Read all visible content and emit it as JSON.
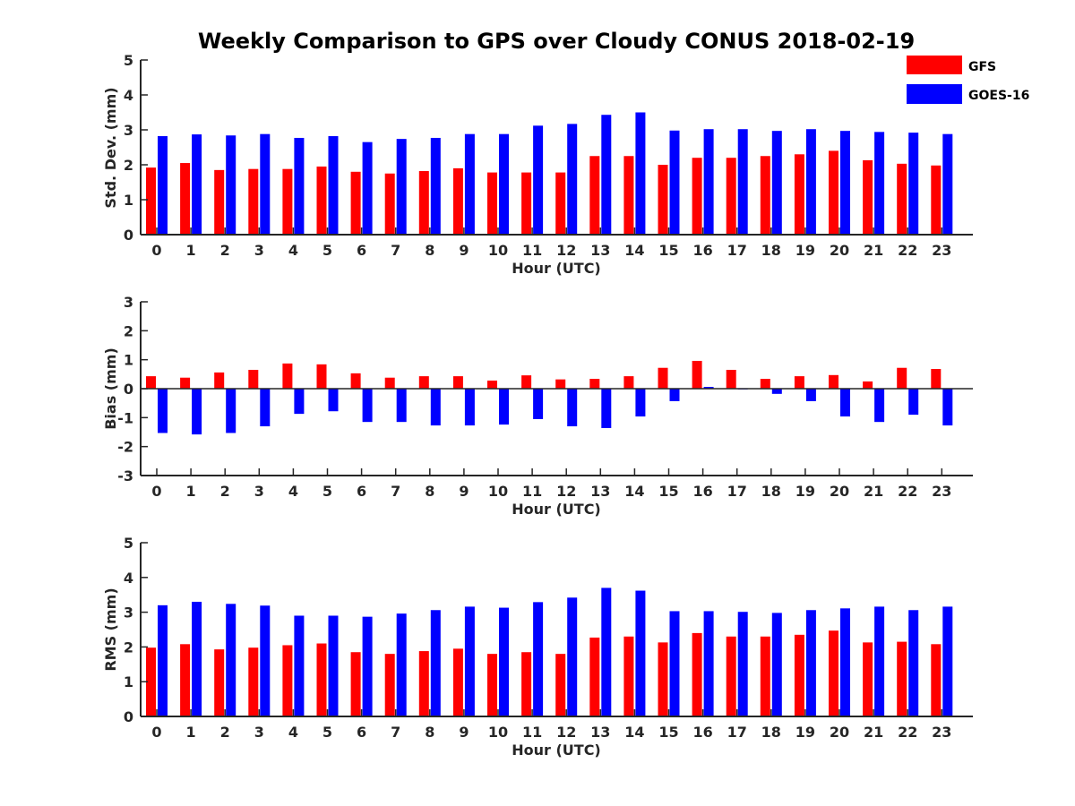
{
  "title": "Weekly Comparison to GPS over Cloudy CONUS 2018-02-19",
  "colors": {
    "GFS": "#ff0000",
    "GOES-16": "#0000ff",
    "axis": "#262626"
  },
  "legend": {
    "placement": "top-right",
    "entries": [
      "GFS",
      "GOES-16"
    ]
  },
  "chart_data": [
    {
      "type": "bar",
      "xlabel": "Hour (UTC)",
      "ylabel": "Std. Dev. (mm)",
      "ylim": [
        0,
        5
      ],
      "yticks": [
        0,
        1,
        2,
        3,
        4,
        5
      ],
      "grid": false,
      "categories": [
        "0",
        "1",
        "2",
        "3",
        "4",
        "5",
        "6",
        "7",
        "8",
        "9",
        "10",
        "11",
        "12",
        "13",
        "14",
        "15",
        "16",
        "17",
        "18",
        "19",
        "20",
        "21",
        "22",
        "23"
      ],
      "series": [
        {
          "name": "GFS",
          "values": [
            1.92,
            2.05,
            1.85,
            1.88,
            1.88,
            1.95,
            1.8,
            1.75,
            1.82,
            1.9,
            1.78,
            1.78,
            1.78,
            2.25,
            2.25,
            2.0,
            2.2,
            2.2,
            2.25,
            2.3,
            2.4,
            2.13,
            2.03,
            1.98
          ]
        },
        {
          "name": "GOES-16",
          "values": [
            2.82,
            2.87,
            2.84,
            2.88,
            2.77,
            2.82,
            2.65,
            2.74,
            2.77,
            2.88,
            2.88,
            3.12,
            3.17,
            3.43,
            3.5,
            2.98,
            3.02,
            3.02,
            2.97,
            3.02,
            2.97,
            2.94,
            2.92,
            2.88
          ]
        }
      ]
    },
    {
      "type": "bar",
      "xlabel": "Hour (UTC)",
      "ylabel": "Bias (mm)",
      "ylim": [
        -3,
        3
      ],
      "yticks": [
        -3,
        -2,
        -1,
        0,
        1,
        2,
        3
      ],
      "grid": false,
      "categories": [
        "0",
        "1",
        "2",
        "3",
        "4",
        "5",
        "6",
        "7",
        "8",
        "9",
        "10",
        "11",
        "12",
        "13",
        "14",
        "15",
        "16",
        "17",
        "18",
        "19",
        "20",
        "21",
        "22",
        "23"
      ],
      "series": [
        {
          "name": "GFS",
          "values": [
            0.43,
            0.38,
            0.56,
            0.65,
            0.87,
            0.84,
            0.53,
            0.38,
            0.43,
            0.43,
            0.28,
            0.46,
            0.32,
            0.34,
            0.43,
            0.72,
            0.96,
            0.65,
            0.34,
            0.43,
            0.47,
            0.25,
            0.72,
            0.68
          ]
        },
        {
          "name": "GOES-16",
          "values": [
            -1.53,
            -1.58,
            -1.53,
            -1.3,
            -0.87,
            -0.78,
            -1.15,
            -1.15,
            -1.27,
            -1.27,
            -1.24,
            -1.05,
            -1.3,
            -1.36,
            -0.96,
            -0.43,
            0.06,
            0.0,
            -0.18,
            -0.43,
            -0.96,
            -1.15,
            -0.9,
            -1.27
          ]
        }
      ]
    },
    {
      "type": "bar",
      "xlabel": "Hour (UTC)",
      "ylabel": "RMS (mm)",
      "ylim": [
        0,
        5
      ],
      "yticks": [
        0,
        1,
        2,
        3,
        4,
        5
      ],
      "grid": false,
      "categories": [
        "0",
        "1",
        "2",
        "3",
        "4",
        "5",
        "6",
        "7",
        "8",
        "9",
        "10",
        "11",
        "12",
        "13",
        "14",
        "15",
        "16",
        "17",
        "18",
        "19",
        "20",
        "21",
        "22",
        "23"
      ],
      "series": [
        {
          "name": "GFS",
          "values": [
            1.98,
            2.08,
            1.93,
            1.98,
            2.05,
            2.1,
            1.85,
            1.8,
            1.88,
            1.95,
            1.8,
            1.85,
            1.8,
            2.27,
            2.3,
            2.13,
            2.4,
            2.3,
            2.3,
            2.35,
            2.47,
            2.13,
            2.15,
            2.08
          ]
        },
        {
          "name": "GOES-16",
          "values": [
            3.2,
            3.3,
            3.24,
            3.19,
            2.9,
            2.9,
            2.87,
            2.96,
            3.06,
            3.16,
            3.13,
            3.29,
            3.42,
            3.7,
            3.62,
            3.03,
            3.03,
            3.01,
            2.98,
            3.06,
            3.11,
            3.16,
            3.06,
            3.16
          ]
        }
      ]
    }
  ]
}
